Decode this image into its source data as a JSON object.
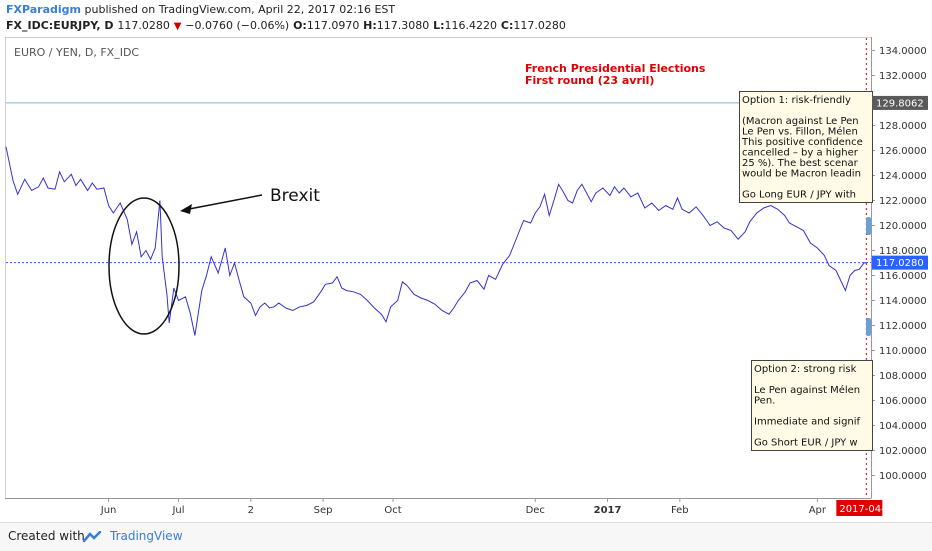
{
  "header": {
    "brand": "FXParadigm",
    "published": "published on TradingView.com, April 22, 2017 02:16 EST",
    "symbol": "FX_IDC:EURJPY, D",
    "last": "117.0280",
    "change": "−0.0760 (−0.06%)",
    "o_label": "O:",
    "o_value": "117.0970",
    "h_label": "H:",
    "h_value": "117.3080",
    "l_label": "L:",
    "l_value": "116.4220",
    "c_label": "C:",
    "c_value": "117.0280"
  },
  "chart_title": "EURO / YEN, D, FX_IDC",
  "footer": {
    "created": "Created with",
    "brand": "TradingView"
  },
  "colors": {
    "line": "#3333cc",
    "red": "#e00000",
    "note_bg": "#fffbe6",
    "hline_blue": "#7db8d8",
    "price_tag": "#2962ff",
    "price_tag_gray": "#5a5a5a"
  },
  "annotations": {
    "french_title_1": "French Presidential Elections",
    "french_title_2": "First round (23 avril)",
    "brexit": "Brexit",
    "option1": [
      "Option 1: risk-friendly",
      "",
      "(Macron against Le Pen",
      "Le Pen vs. Fillon, Mélen",
      "This positive confidence",
      "cancelled – by a higher",
      "25 %). The best scenar",
      "would be Macron leadin",
      "",
      "Go Long EUR / JPY with"
    ],
    "option2": [
      "Option 2: strong risk",
      "",
      "Le Pen against Mélen",
      "Pen.",
      "",
      "Immediate and signif",
      "",
      "Go Short EUR / JPY w"
    ]
  },
  "chart_data": {
    "type": "line",
    "title": "EURO / YEN, D, FX_IDC",
    "ylim": [
      98.2,
      135.0
    ],
    "yticks": [
      100,
      102,
      104,
      106,
      108,
      110,
      112,
      114,
      116,
      118,
      120,
      122,
      124,
      126,
      128,
      130,
      132,
      134
    ],
    "ytick_labels": [
      "100.0000",
      "102.0000",
      "104.0000",
      "106.0000",
      "108.0000",
      "110.0000",
      "112.0000",
      "114.0000",
      "116.0000",
      "118.0000",
      "120.0000",
      "122.0000",
      "124.0000",
      "126.0000",
      "128.0000",
      "130.0000",
      "132.0000",
      "134.0000"
    ],
    "xtick_labels": [
      "Jun",
      "Jul",
      "2",
      "Sep",
      "Oct",
      "Dec",
      "2017",
      "Feb",
      "Apr"
    ],
    "xtick_label_dates": [
      "2016-06-01",
      "2016-07-01",
      "2016-08-01",
      "2016-09-01",
      "2016-10-01",
      "2016-12-01",
      "2017-01-01",
      "2017-02-01",
      "2017-04-01"
    ],
    "x_start": "2016-04-18",
    "x_end": "2017-04-24",
    "current_date_label": "2017-04-",
    "current_price": 117.028,
    "hline_value": 129.8062,
    "hline_label": "129.8062",
    "current_price_label": "117.0280",
    "series": [
      {
        "points": [
          [
            "2016-04-18",
            126.3
          ],
          [
            "2016-04-21",
            123.6
          ],
          [
            "2016-04-23",
            122.5
          ],
          [
            "2016-04-26",
            123.7
          ],
          [
            "2016-04-29",
            122.8
          ],
          [
            "2016-05-02",
            123.1
          ],
          [
            "2016-05-04",
            123.8
          ],
          [
            "2016-05-06",
            123.0
          ],
          [
            "2016-05-09",
            122.9
          ],
          [
            "2016-05-11",
            124.3
          ],
          [
            "2016-05-13",
            123.5
          ],
          [
            "2016-05-16",
            124.1
          ],
          [
            "2016-05-18",
            123.2
          ],
          [
            "2016-05-20",
            123.7
          ],
          [
            "2016-05-23",
            122.8
          ],
          [
            "2016-05-25",
            123.4
          ],
          [
            "2016-05-27",
            122.9
          ],
          [
            "2016-05-30",
            123.0
          ],
          [
            "2016-06-01",
            121.6
          ],
          [
            "2016-06-03",
            121.0
          ],
          [
            "2016-06-06",
            121.8
          ],
          [
            "2016-06-09",
            120.5
          ],
          [
            "2016-06-11",
            118.5
          ],
          [
            "2016-06-13",
            119.5
          ],
          [
            "2016-06-15",
            117.5
          ],
          [
            "2016-06-17",
            118.0
          ],
          [
            "2016-06-19",
            117.3
          ],
          [
            "2016-06-21",
            118.2
          ],
          [
            "2016-06-23",
            122.0
          ],
          [
            "2016-06-24",
            117.5
          ],
          [
            "2016-06-26",
            114.5
          ],
          [
            "2016-06-27",
            112.2
          ],
          [
            "2016-06-29",
            115.0
          ],
          [
            "2016-07-01",
            114.0
          ],
          [
            "2016-07-04",
            114.3
          ],
          [
            "2016-07-06",
            113.0
          ],
          [
            "2016-07-08",
            111.2
          ],
          [
            "2016-07-11",
            114.8
          ],
          [
            "2016-07-13",
            116.0
          ],
          [
            "2016-07-15",
            117.5
          ],
          [
            "2016-07-18",
            116.2
          ],
          [
            "2016-07-20",
            117.5
          ],
          [
            "2016-07-21",
            118.2
          ],
          [
            "2016-07-23",
            116.0
          ],
          [
            "2016-07-25",
            117.0
          ],
          [
            "2016-07-27",
            115.6
          ],
          [
            "2016-07-29",
            114.3
          ],
          [
            "2016-08-01",
            113.8
          ],
          [
            "2016-08-03",
            112.8
          ],
          [
            "2016-08-05",
            113.5
          ],
          [
            "2016-08-07",
            113.8
          ],
          [
            "2016-08-09",
            113.4
          ],
          [
            "2016-08-11",
            113.5
          ],
          [
            "2016-08-13",
            113.8
          ],
          [
            "2016-08-16",
            113.4
          ],
          [
            "2016-08-19",
            113.2
          ],
          [
            "2016-08-22",
            113.5
          ],
          [
            "2016-08-25",
            113.6
          ],
          [
            "2016-08-28",
            113.9
          ],
          [
            "2016-08-31",
            114.7
          ],
          [
            "2016-09-02",
            115.3
          ],
          [
            "2016-09-05",
            115.4
          ],
          [
            "2016-09-07",
            115.9
          ],
          [
            "2016-09-09",
            115.0
          ],
          [
            "2016-09-11",
            114.8
          ],
          [
            "2016-09-14",
            114.7
          ],
          [
            "2016-09-17",
            114.5
          ],
          [
            "2016-09-20",
            114.0
          ],
          [
            "2016-09-23",
            113.4
          ],
          [
            "2016-09-26",
            112.9
          ],
          [
            "2016-09-28",
            112.3
          ],
          [
            "2016-09-30",
            113.5
          ],
          [
            "2016-10-03",
            114.0
          ],
          [
            "2016-10-05",
            115.5
          ],
          [
            "2016-10-07",
            115.2
          ],
          [
            "2016-10-10",
            114.5
          ],
          [
            "2016-10-13",
            114.2
          ],
          [
            "2016-10-16",
            114.0
          ],
          [
            "2016-10-19",
            113.7
          ],
          [
            "2016-10-22",
            113.2
          ],
          [
            "2016-10-25",
            112.9
          ],
          [
            "2016-10-27",
            113.4
          ],
          [
            "2016-10-29",
            114.0
          ],
          [
            "2016-11-01",
            114.7
          ],
          [
            "2016-11-03",
            115.4
          ],
          [
            "2016-11-06",
            115.6
          ],
          [
            "2016-11-09",
            114.9
          ],
          [
            "2016-11-11",
            116.0
          ],
          [
            "2016-11-14",
            115.7
          ],
          [
            "2016-11-17",
            116.9
          ],
          [
            "2016-11-20",
            117.6
          ],
          [
            "2016-11-23",
            119.0
          ],
          [
            "2016-11-26",
            120.4
          ],
          [
            "2016-11-29",
            120.2
          ],
          [
            "2016-12-01",
            121.0
          ],
          [
            "2016-12-03",
            121.5
          ],
          [
            "2016-12-05",
            122.5
          ],
          [
            "2016-12-07",
            120.8
          ],
          [
            "2016-12-09",
            122.0
          ],
          [
            "2016-12-11",
            123.3
          ],
          [
            "2016-12-13",
            122.7
          ],
          [
            "2016-12-15",
            122.0
          ],
          [
            "2016-12-17",
            121.8
          ],
          [
            "2016-12-19",
            122.8
          ],
          [
            "2016-12-21",
            123.3
          ],
          [
            "2016-12-23",
            122.6
          ],
          [
            "2016-12-25",
            121.9
          ],
          [
            "2016-12-27",
            122.6
          ],
          [
            "2016-12-30",
            123.0
          ],
          [
            "2017-01-02",
            122.4
          ],
          [
            "2017-01-04",
            123.1
          ],
          [
            "2017-01-06",
            122.6
          ],
          [
            "2017-01-08",
            123.0
          ],
          [
            "2017-01-11",
            122.3
          ],
          [
            "2017-01-14",
            122.6
          ],
          [
            "2017-01-17",
            121.4
          ],
          [
            "2017-01-20",
            121.8
          ],
          [
            "2017-01-23",
            121.2
          ],
          [
            "2017-01-26",
            121.6
          ],
          [
            "2017-01-29",
            121.3
          ],
          [
            "2017-01-31",
            122.2
          ],
          [
            "2017-02-02",
            121.3
          ],
          [
            "2017-02-05",
            121.0
          ],
          [
            "2017-02-08",
            121.5
          ],
          [
            "2017-02-11",
            120.8
          ],
          [
            "2017-02-14",
            120.0
          ],
          [
            "2017-02-17",
            120.3
          ],
          [
            "2017-02-20",
            119.8
          ],
          [
            "2017-02-23",
            119.6
          ],
          [
            "2017-02-26",
            118.9
          ],
          [
            "2017-03-01",
            119.5
          ],
          [
            "2017-03-03",
            120.3
          ],
          [
            "2017-03-06",
            121.0
          ],
          [
            "2017-03-09",
            121.4
          ],
          [
            "2017-03-12",
            121.6
          ],
          [
            "2017-03-15",
            121.3
          ],
          [
            "2017-03-18",
            120.8
          ],
          [
            "2017-03-20",
            120.2
          ],
          [
            "2017-03-23",
            119.9
          ],
          [
            "2017-03-26",
            119.6
          ],
          [
            "2017-03-29",
            118.6
          ],
          [
            "2017-04-01",
            118.2
          ],
          [
            "2017-04-04",
            117.6
          ],
          [
            "2017-04-06",
            116.8
          ],
          [
            "2017-04-09",
            116.4
          ],
          [
            "2017-04-11",
            115.6
          ],
          [
            "2017-04-13",
            114.8
          ],
          [
            "2017-04-15",
            116.0
          ],
          [
            "2017-04-17",
            116.4
          ],
          [
            "2017-04-19",
            116.5
          ],
          [
            "2017-04-21",
            117.0
          ],
          [
            "2017-04-22",
            117.028
          ]
        ]
      }
    ]
  }
}
